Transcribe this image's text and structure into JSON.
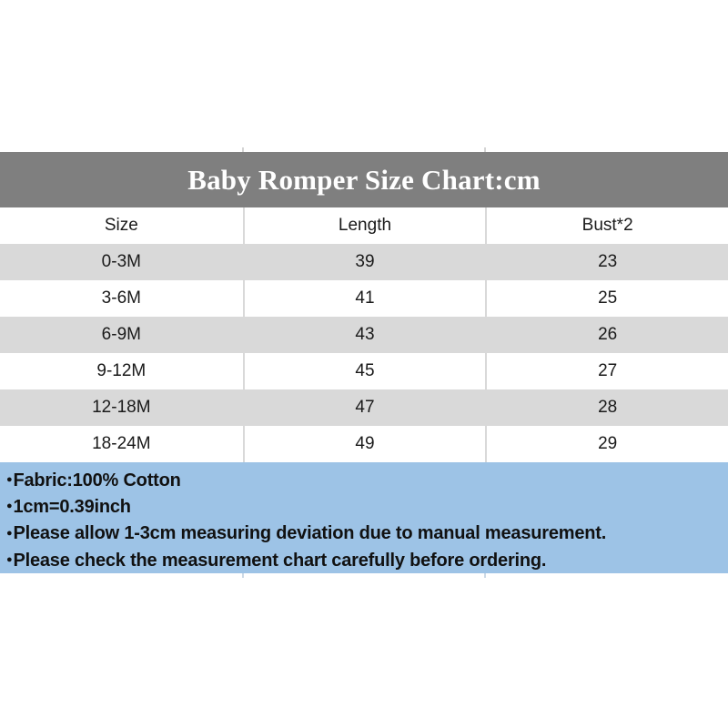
{
  "chart_data": {
    "type": "table",
    "title": "Baby Romper Size Chart:cm",
    "columns": [
      "Size",
      "Length",
      "Bust*2"
    ],
    "rows": [
      [
        "0-3M",
        "39",
        "23"
      ],
      [
        "3-6M",
        "41",
        "25"
      ],
      [
        "6-9M",
        "43",
        "26"
      ],
      [
        "9-12M",
        "45",
        "27"
      ],
      [
        "12-18M",
        "47",
        "28"
      ],
      [
        "18-24M",
        "49",
        "29"
      ]
    ],
    "notes": [
      "Fabric:100% Cotton",
      "1cm=0.39inch",
      "Please allow 1-3cm measuring deviation due to manual measurement.",
      "Please check the measurement chart carefully before ordering."
    ],
    "layout_hints": {
      "row_striping": "alternating gray/white starting gray",
      "notes_position": "below table"
    }
  },
  "notes_bullet": "●",
  "colors": {
    "title_band": "#7f7f7f",
    "title_text": "#ffffff",
    "row_alt": "#d9d9d9",
    "row_white": "#ffffff",
    "notes_band": "#9dc3e6",
    "text": "#1a1a1a",
    "divider": "#d9d9d9"
  }
}
